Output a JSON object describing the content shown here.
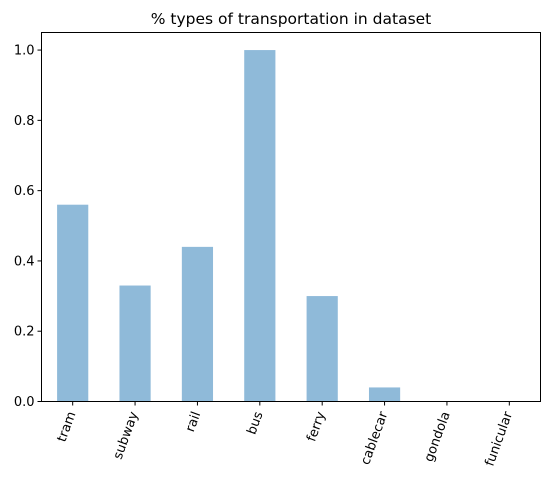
{
  "chart_data": {
    "type": "bar",
    "title": "% types of transportation in dataset",
    "xlabel": "",
    "ylabel": "",
    "categories": [
      "tram",
      "subway",
      "rail",
      "bus",
      "ferry",
      "cablecar",
      "gondola",
      "funicular"
    ],
    "values": [
      0.56,
      0.33,
      0.44,
      1.0,
      0.3,
      0.04,
      0.0,
      0.0
    ],
    "ylim": [
      0,
      1.05
    ],
    "yticks": [
      "0.0",
      "0.2",
      "0.4",
      "0.6",
      "0.8",
      "1.0"
    ],
    "bar_color": "#8fbad9",
    "grid": false,
    "legend": false
  }
}
